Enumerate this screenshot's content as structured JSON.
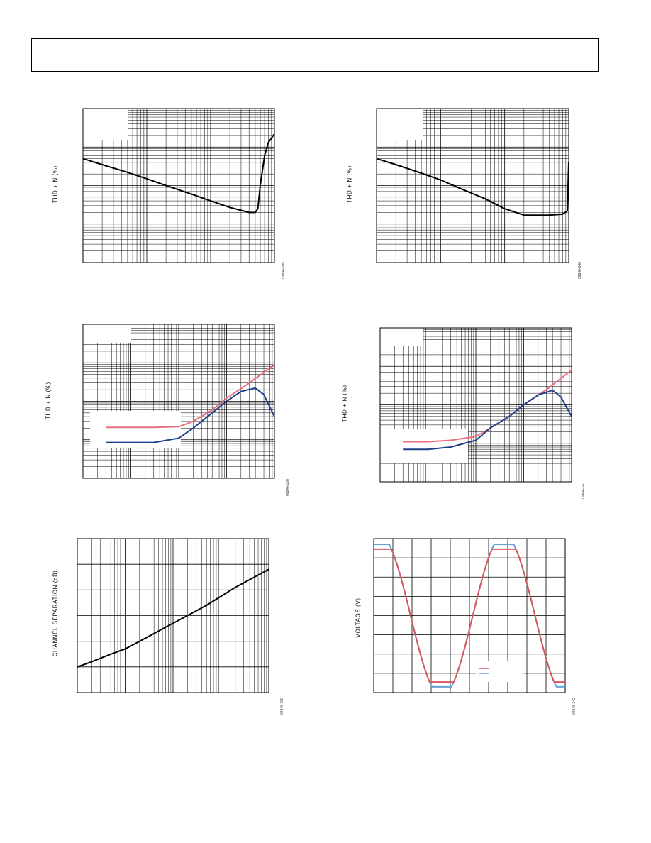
{
  "page": {
    "header_text": ""
  },
  "chart_data": [
    {
      "type": "line",
      "ylabel": "THD + N (%)",
      "fig_id": "09846-205",
      "x_scale": "log",
      "y_scale": "log",
      "xlim": [
        0.001,
        1
      ],
      "ylim": [
        0.001,
        10
      ],
      "series": [
        {
          "color": "#000000",
          "x": [
            0.001,
            0.002,
            0.005,
            0.01,
            0.02,
            0.05,
            0.1,
            0.2,
            0.4,
            0.5,
            0.55,
            0.6,
            0.7,
            0.8,
            1.0
          ],
          "y": [
            0.5,
            0.35,
            0.22,
            0.15,
            0.1,
            0.06,
            0.04,
            0.027,
            0.02,
            0.02,
            0.025,
            0.1,
            0.6,
            1.3,
            2.2
          ]
        }
      ]
    },
    {
      "type": "line",
      "ylabel": "THD + N (%)",
      "fig_id": "09846-040",
      "x_scale": "log",
      "y_scale": "log",
      "xlim": [
        0.001,
        1
      ],
      "ylim": [
        0.001,
        10
      ],
      "series": [
        {
          "color": "#000000",
          "x": [
            0.001,
            0.002,
            0.005,
            0.01,
            0.02,
            0.05,
            0.1,
            0.2,
            0.5,
            0.8,
            0.95,
            1.0
          ],
          "y": [
            0.5,
            0.35,
            0.21,
            0.14,
            0.085,
            0.045,
            0.025,
            0.017,
            0.017,
            0.018,
            0.022,
            0.4
          ]
        }
      ]
    },
    {
      "type": "line",
      "ylabel": "THD + N (%)",
      "fig_id": "09846-208",
      "x_scale": "log",
      "y_scale": "log",
      "xlim": [
        10,
        100000
      ],
      "ylim": [
        0.0001,
        1
      ],
      "series": [
        {
          "color": "#e8707e",
          "x": [
            30,
            100,
            300,
            1000,
            2000,
            5000,
            10000,
            30000,
            100000
          ],
          "y": [
            0.0021,
            0.0021,
            0.0021,
            0.0022,
            0.003,
            0.006,
            0.012,
            0.03,
            0.09
          ]
        },
        {
          "color": "#1f3f88",
          "x": [
            30,
            100,
            300,
            1000,
            2000,
            5000,
            10000,
            20000,
            40000,
            60000,
            100000
          ],
          "y": [
            0.00085,
            0.00085,
            0.00085,
            0.0011,
            0.002,
            0.005,
            0.01,
            0.018,
            0.022,
            0.015,
            0.004
          ]
        }
      ]
    },
    {
      "type": "line",
      "ylabel": "THD + N (%)",
      "fig_id": "09846-141",
      "x_scale": "log",
      "y_scale": "log",
      "xlim": [
        10,
        100000
      ],
      "ylim": [
        0.0001,
        1
      ],
      "series": [
        {
          "color": "#e8707e",
          "x": [
            30,
            100,
            300,
            1000,
            2000,
            5000,
            10000,
            30000,
            100000
          ],
          "y": [
            0.0011,
            0.0011,
            0.0012,
            0.0015,
            0.0025,
            0.005,
            0.01,
            0.025,
            0.08
          ]
        },
        {
          "color": "#1f3f88",
          "x": [
            30,
            100,
            300,
            1000,
            2000,
            5000,
            10000,
            20000,
            40000,
            60000,
            100000
          ],
          "y": [
            0.0007,
            0.0007,
            0.0008,
            0.0012,
            0.0025,
            0.005,
            0.01,
            0.018,
            0.024,
            0.016,
            0.005
          ]
        }
      ]
    },
    {
      "type": "line",
      "ylabel": "CHANNEL SEPARATION (dB)",
      "fig_id": "09846-039",
      "x_scale": "log",
      "y_scale": "linear",
      "xlim": [
        10,
        100000
      ],
      "ylim": [
        0,
        6
      ],
      "series": [
        {
          "color": "#000000",
          "x": [
            10,
            20,
            50,
            100,
            200,
            500,
            1000,
            2000,
            5000,
            10000,
            20000,
            50000,
            100000
          ],
          "y": [
            1.0,
            1.2,
            1.5,
            1.7,
            2.0,
            2.4,
            2.7,
            3.0,
            3.4,
            3.75,
            4.1,
            4.5,
            4.8
          ]
        }
      ]
    },
    {
      "type": "line",
      "ylabel": "VOLTAGE (V)",
      "fig_id": "09846-042",
      "x_scale": "linear",
      "y_scale": "linear",
      "xlim": [
        0,
        10
      ],
      "ylim": [
        -4,
        4
      ],
      "series": [
        {
          "color": "#6a9fd4",
          "clip": 3.7
        },
        {
          "color": "#d9585e",
          "clip": 3.45
        }
      ]
    }
  ]
}
